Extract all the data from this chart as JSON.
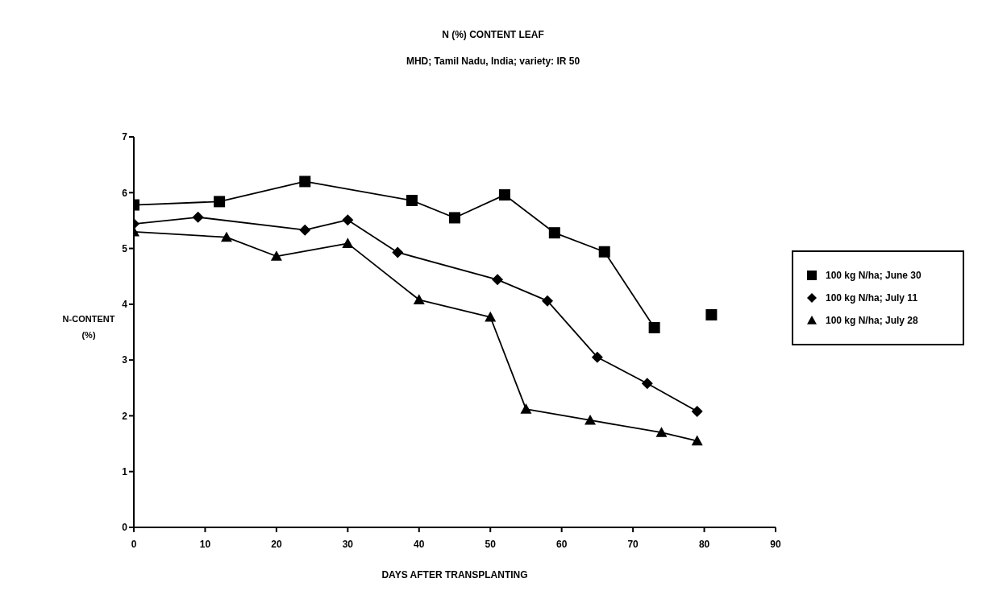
{
  "chart_data": {
    "type": "line",
    "title": "N (%) CONTENT LEAF",
    "subtitle": "MHD; Tamil Nadu, India; variety: IR 50",
    "xlabel": "DAYS AFTER TRANSPLANTING",
    "ylabel": "N-CONTENT\n(%)",
    "xlim": [
      0,
      90
    ],
    "xticks": [
      0,
      10,
      20,
      30,
      40,
      50,
      60,
      70,
      80,
      90
    ],
    "ylim": [
      0,
      7
    ],
    "yticks": [
      0,
      1,
      2,
      3,
      4,
      5,
      6,
      7
    ],
    "grid": false,
    "legend": "right",
    "line_style": "solid",
    "series": [
      {
        "name": "100 kg N/ha; June 30",
        "color": "#000000",
        "marker": "square",
        "x": [
          0,
          12,
          24,
          39,
          45,
          52,
          59,
          66,
          73,
          77,
          81
        ],
        "values": [
          5.78,
          5.84,
          6.2,
          5.86,
          5.55,
          5.96,
          5.28,
          4.94,
          3.58,
          null,
          3.81
        ]
      },
      {
        "name": "100 kg N/ha; July 11",
        "color": "#000000",
        "marker": "diamond",
        "x": [
          0,
          9,
          24,
          30,
          37,
          51,
          58,
          65,
          72,
          79
        ],
        "values": [
          5.44,
          5.56,
          5.33,
          5.51,
          4.93,
          4.44,
          4.06,
          3.05,
          2.58,
          2.08
        ]
      },
      {
        "name": "100 kg N/ha; July 28",
        "color": "#000000",
        "marker": "triangle",
        "x": [
          0,
          13,
          20,
          30,
          40,
          50,
          55,
          64,
          74,
          79
        ],
        "values": [
          5.3,
          5.2,
          4.86,
          5.09,
          4.08,
          3.77,
          2.12,
          1.92,
          1.7,
          1.55
        ]
      }
    ]
  }
}
